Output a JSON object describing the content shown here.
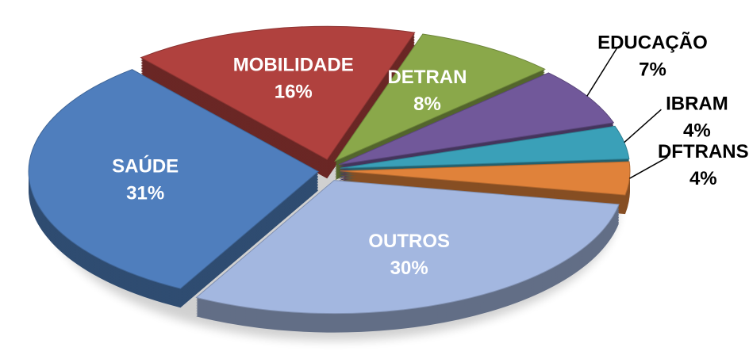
{
  "chart_data": {
    "type": "pie",
    "three_d": true,
    "exploded": true,
    "categories": [
      "MOBILIDADE",
      "DETRAN",
      "EDUCAÇÃO",
      "IBRAM",
      "DFTRANS",
      "OUTROS",
      "SAÚDE"
    ],
    "values": [
      16,
      8,
      7,
      4,
      4,
      30,
      31
    ],
    "value_labels": [
      "16%",
      "8%",
      "7%",
      "4%",
      "4%",
      "30%",
      "31%"
    ],
    "colors": [
      "#b0413e",
      "#8aa84a",
      "#71589a",
      "#3aa0b8",
      "#e0823a",
      "#a3b7e0",
      "#4f7ebd"
    ]
  }
}
